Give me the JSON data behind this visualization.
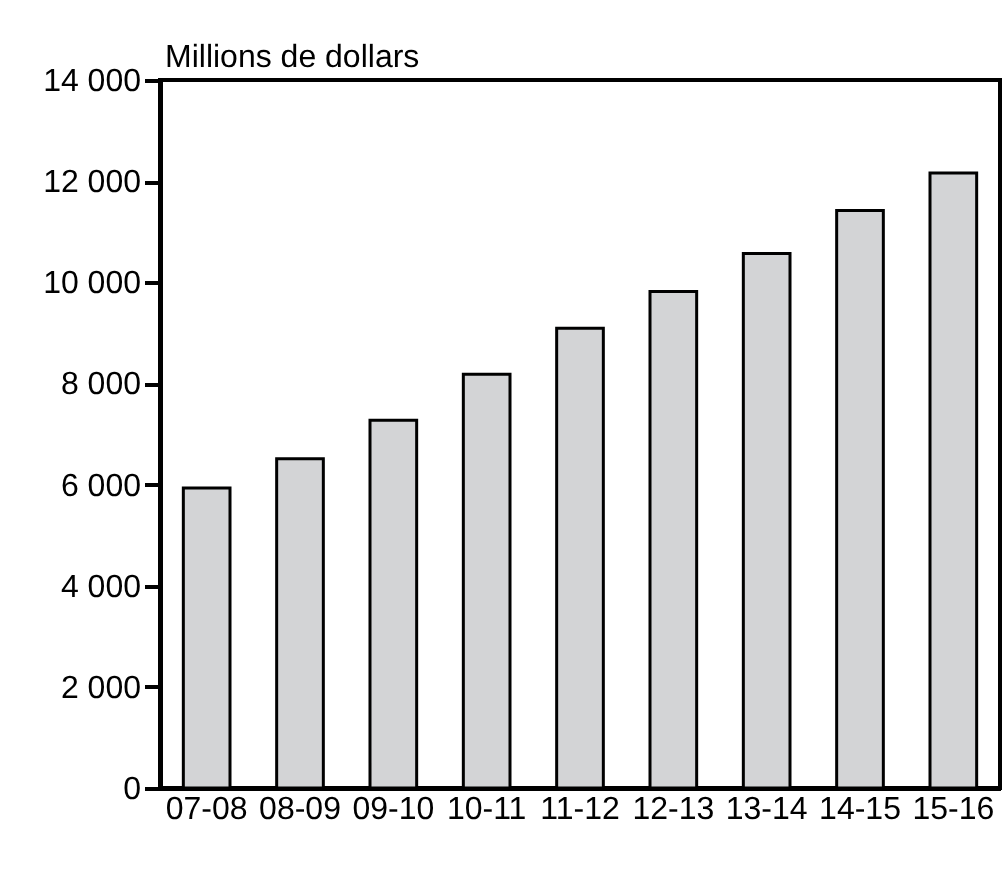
{
  "chart_data": {
    "type": "bar",
    "ylabel": "Millions de dollars",
    "categories": [
      "07-08",
      "08-09",
      "09-10",
      "10-11",
      "11-12",
      "12-13",
      "13-14",
      "14-15",
      "15-16"
    ],
    "values": [
      5930,
      6510,
      7270,
      8180,
      9090,
      9820,
      10570,
      11420,
      12160
    ],
    "color": "#d3d4d6",
    "ylim": [
      0,
      14000
    ],
    "yticks": [
      {
        "value": 0,
        "label": "0"
      },
      {
        "value": 2000,
        "label": "2 000"
      },
      {
        "value": 4000,
        "label": "4 000"
      },
      {
        "value": 6000,
        "label": "6 000"
      },
      {
        "value": 8000,
        "label": "8 000"
      },
      {
        "value": 10000,
        "label": "10 000"
      },
      {
        "value": 12000,
        "label": "12 000"
      },
      {
        "value": 14000,
        "label": "14 000"
      }
    ],
    "grid": false
  }
}
